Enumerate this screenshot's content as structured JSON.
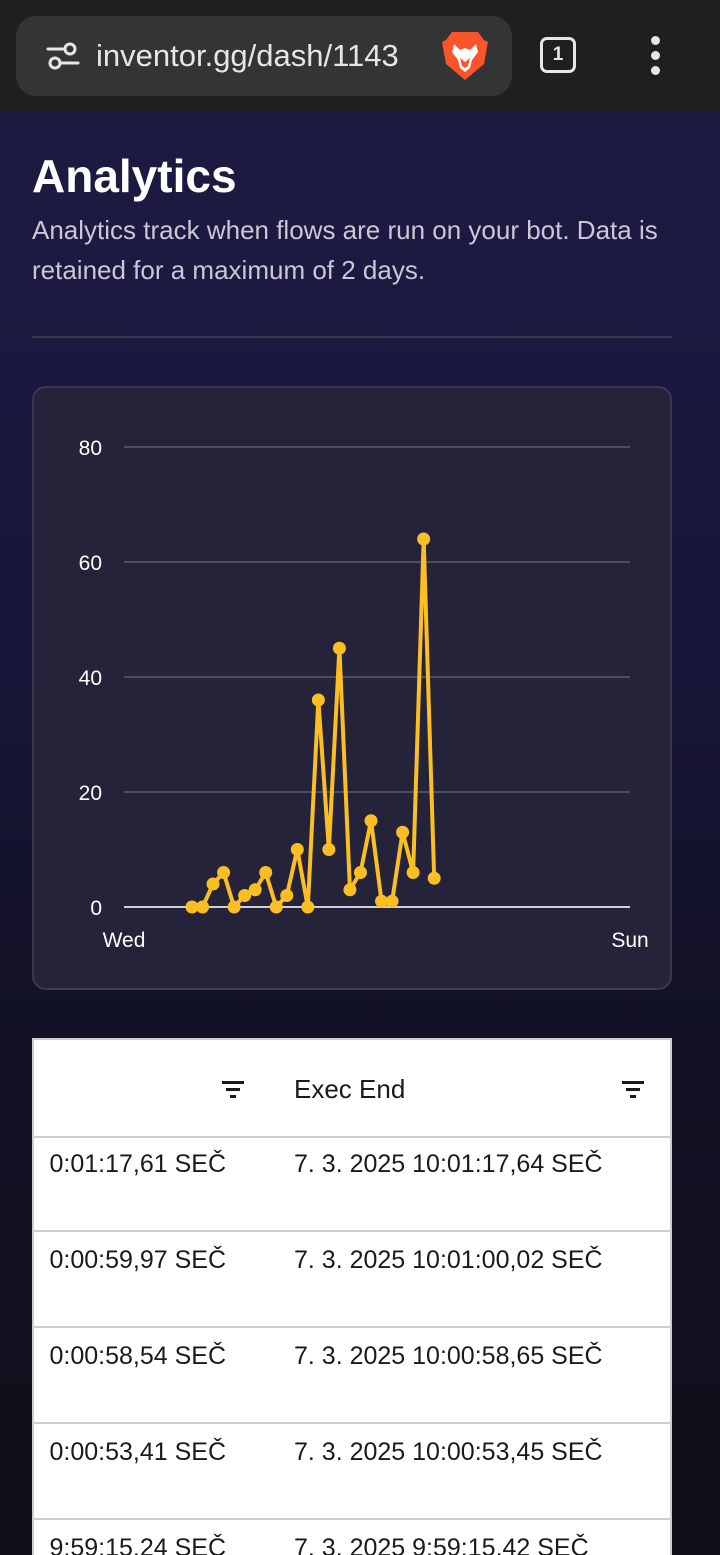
{
  "browser": {
    "url": "inventor.gg/dash/1143",
    "tab_count": "1",
    "icons": [
      "tune-icon",
      "brave-lion-icon",
      "more-vert-icon"
    ]
  },
  "page": {
    "title": "Analytics",
    "description": "Analytics track when flows are run on your bot. Data is retained for a maximum of 2 days."
  },
  "colors": {
    "line": "#fbbf24",
    "grid": "#5a5a70",
    "axis_text": "#ffffff"
  },
  "chart_data": {
    "type": "line",
    "title": "",
    "xlabel": "",
    "ylabel": "",
    "x_tick_labels": [
      "Wed",
      "Sun"
    ],
    "y_ticks": [
      0,
      20,
      40,
      60,
      80
    ],
    "ylim": [
      0,
      80
    ],
    "grid": true,
    "legend": "none",
    "series": [
      {
        "values": [
          0,
          0,
          4,
          6,
          0,
          2,
          3,
          6,
          0,
          2,
          10,
          0,
          36,
          10,
          45,
          3,
          6,
          15,
          1,
          1,
          13,
          6,
          64,
          5
        ]
      }
    ]
  },
  "table": {
    "columns": [
      {
        "label": ""
      },
      {
        "label": "Exec End"
      }
    ],
    "rows": [
      {
        "start": "0:01:17,61 SEČ",
        "end": "7. 3. 2025 10:01:17,64 SEČ"
      },
      {
        "start": "0:00:59,97 SEČ",
        "end": "7. 3. 2025 10:01:00,02 SEČ"
      },
      {
        "start": "0:00:58,54 SEČ",
        "end": "7. 3. 2025 10:00:58,65 SEČ"
      },
      {
        "start": "0:00:53,41 SEČ",
        "end": "7. 3. 2025 10:00:53,45 SEČ"
      },
      {
        "start": "9:59:15,24 SEČ",
        "end": "7. 3. 2025 9:59:15,42 SEČ"
      }
    ]
  }
}
